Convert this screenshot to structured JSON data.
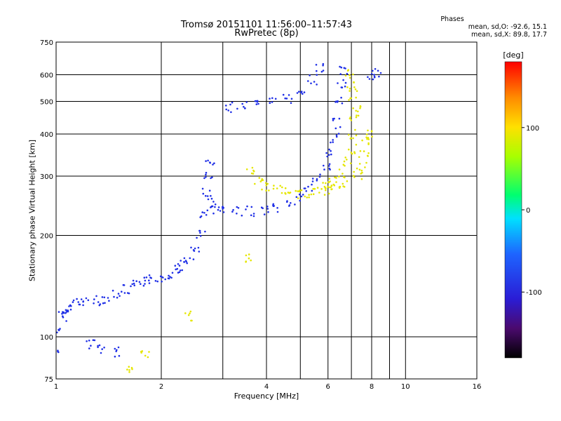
{
  "header": {
    "title": "Tromsø 20151101 11:56:00–11:57:43",
    "subtitle": "RwPretec (8p)"
  },
  "phases": {
    "heading": "Phases",
    "line_o": "mean, sd,O: -92.6, 15.1",
    "line_x": "mean, sd,X: 89.8, 17.7"
  },
  "colorbar": {
    "label": "[deg]",
    "ticks": [
      {
        "value": 100,
        "label": "100"
      },
      {
        "value": 0,
        "label": "0"
      },
      {
        "value": -100,
        "label": "-100"
      }
    ],
    "range": [
      -180,
      180
    ]
  },
  "chart_data": {
    "type": "scatter",
    "xlabel": "Frequency [MHz]",
    "ylabel": "Stationary phase Virtual Height [km]",
    "xscale": "log",
    "yscale": "log",
    "xlim": [
      1,
      16
    ],
    "ylim": [
      75,
      750
    ],
    "xticks": [
      1,
      2,
      4,
      6,
      8,
      10,
      16
    ],
    "xtick_labels": [
      "1",
      "2",
      "4",
      "6",
      "8",
      "10",
      "16"
    ],
    "x_gridlines": [
      1,
      2,
      3,
      4,
      5,
      6,
      7,
      8,
      9,
      10,
      16
    ],
    "yticks": [
      75,
      100,
      200,
      300,
      400,
      500,
      600,
      750
    ],
    "ytick_labels": [
      "75",
      "100",
      "200",
      "300",
      "400",
      "500",
      "600",
      "750"
    ],
    "y_gridlines": [
      75,
      100,
      200,
      300,
      400,
      500,
      600,
      750
    ],
    "grid": true,
    "series": [
      {
        "mode": "O",
        "color": "#1f2fe6",
        "points": [
          [
            1.02,
            105
          ],
          [
            1.04,
            115
          ],
          [
            1.07,
            118
          ],
          [
            1.1,
            122
          ],
          [
            1.15,
            126
          ],
          [
            1.2,
            127
          ],
          [
            1.3,
            128
          ],
          [
            1.4,
            130
          ],
          [
            1.5,
            134
          ],
          [
            1.6,
            138
          ],
          [
            1.7,
            142
          ],
          [
            1.8,
            146
          ],
          [
            1.9,
            148
          ],
          [
            2.0,
            150
          ],
          [
            2.1,
            154
          ],
          [
            2.2,
            158
          ],
          [
            2.3,
            163
          ],
          [
            2.4,
            170
          ],
          [
            2.5,
            180
          ],
          [
            2.6,
            200
          ],
          [
            2.65,
            230
          ],
          [
            2.7,
            270
          ],
          [
            2.72,
            300
          ],
          [
            2.75,
            330
          ],
          [
            2.8,
            250
          ],
          [
            2.85,
            240
          ],
          [
            3.0,
            237
          ],
          [
            3.3,
            235
          ],
          [
            3.6,
            236
          ],
          [
            4.0,
            238
          ],
          [
            4.3,
            242
          ],
          [
            4.7,
            250
          ],
          [
            5.0,
            260
          ],
          [
            5.3,
            275
          ],
          [
            5.6,
            295
          ],
          [
            5.9,
            320
          ],
          [
            6.1,
            350
          ],
          [
            6.3,
            390
          ],
          [
            6.4,
            430
          ],
          [
            6.5,
            500
          ],
          [
            6.55,
            560
          ],
          [
            6.6,
            620
          ],
          [
            3.1,
            480
          ],
          [
            3.4,
            485
          ],
          [
            3.8,
            490
          ],
          [
            4.2,
            498
          ],
          [
            4.6,
            510
          ],
          [
            5.0,
            540
          ],
          [
            5.4,
            580
          ],
          [
            5.7,
            630
          ],
          [
            1.0,
            88
          ],
          [
            1.35,
            92
          ],
          [
            1.5,
            90
          ],
          [
            1.25,
            95
          ],
          [
            8.0,
            600
          ],
          [
            8.3,
            610
          ]
        ]
      },
      {
        "mode": "X",
        "color": "#e5e600",
        "points": [
          [
            3.6,
            310
          ],
          [
            3.8,
            290
          ],
          [
            4.0,
            280
          ],
          [
            4.3,
            272
          ],
          [
            4.6,
            268
          ],
          [
            5.0,
            266
          ],
          [
            5.3,
            268
          ],
          [
            5.6,
            272
          ],
          [
            5.9,
            280
          ],
          [
            6.2,
            290
          ],
          [
            6.5,
            305
          ],
          [
            6.8,
            330
          ],
          [
            7.0,
            360
          ],
          [
            7.1,
            400
          ],
          [
            7.15,
            440
          ],
          [
            7.2,
            480
          ],
          [
            7.1,
            520
          ],
          [
            7.0,
            560
          ],
          [
            6.9,
            600
          ],
          [
            7.3,
            300
          ],
          [
            7.5,
            320
          ],
          [
            7.6,
            350
          ],
          [
            7.7,
            380
          ],
          [
            7.8,
            400
          ],
          [
            6.0,
            270
          ],
          [
            6.3,
            275
          ],
          [
            6.6,
            285
          ],
          [
            1.6,
            80
          ],
          [
            1.8,
            88
          ],
          [
            2.4,
            115
          ],
          [
            3.5,
            170
          ]
        ]
      }
    ]
  }
}
